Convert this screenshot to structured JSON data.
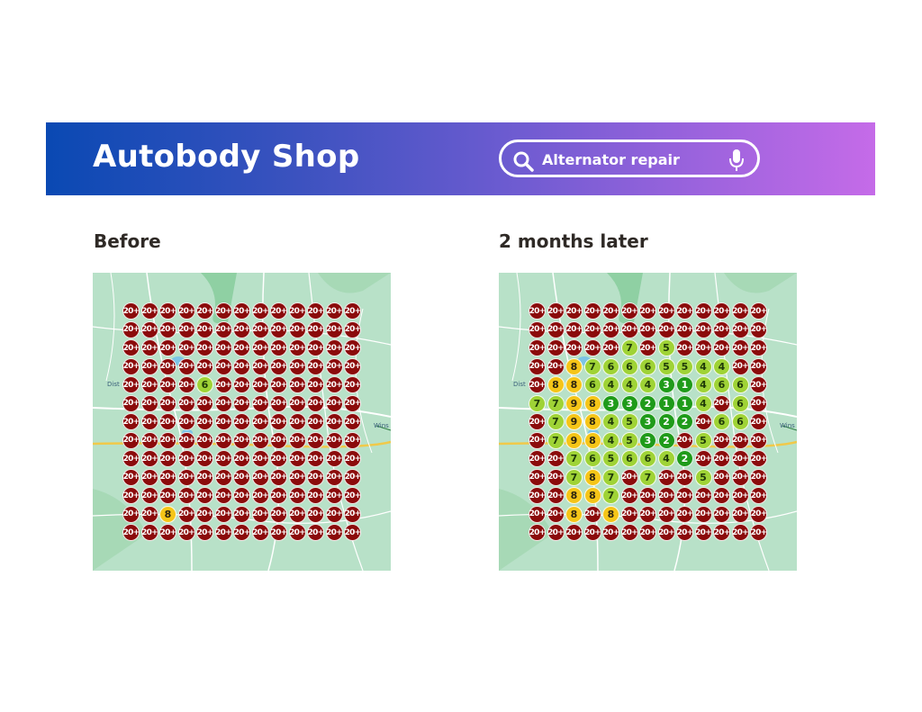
{
  "header": {
    "title": "Autobody Shop",
    "search_query": "Alternator repair",
    "background_gradient": [
      "#0a49b3",
      "#c56be8"
    ]
  },
  "panels": [
    {
      "title": "Before",
      "map_labels": [
        "Dist",
        "Wins"
      ],
      "grid": [
        [
          "20+",
          "20+",
          "20+",
          "20+",
          "20+",
          "20+",
          "20+",
          "20+",
          "20+",
          "20+",
          "20+",
          "20+",
          "20+"
        ],
        [
          "20+",
          "20+",
          "20+",
          "20+",
          "20+",
          "20+",
          "20+",
          "20+",
          "20+",
          "20+",
          "20+",
          "20+",
          "20+"
        ],
        [
          "20+",
          "20+",
          "20+",
          "20+",
          "20+",
          "20+",
          "20+",
          "20+",
          "20+",
          "20+",
          "20+",
          "20+",
          "20+"
        ],
        [
          "20+",
          "20+",
          "20+",
          "20+",
          "20+",
          "20+",
          "20+",
          "20+",
          "20+",
          "20+",
          "20+",
          "20+",
          "20+"
        ],
        [
          "20+",
          "20+",
          "20+",
          "20+",
          "6",
          "20+",
          "20+",
          "20+",
          "20+",
          "20+",
          "20+",
          "20+",
          "20+"
        ],
        [
          "20+",
          "20+",
          "20+",
          "20+",
          "20+",
          "20+",
          "20+",
          "20+",
          "20+",
          "20+",
          "20+",
          "20+",
          "20+"
        ],
        [
          "20+",
          "20+",
          "20+",
          "20+",
          "20+",
          "20+",
          "20+",
          "20+",
          "20+",
          "20+",
          "20+",
          "20+",
          "20+"
        ],
        [
          "20+",
          "20+",
          "20+",
          "20+",
          "20+",
          "20+",
          "20+",
          "20+",
          "20+",
          "20+",
          "20+",
          "20+",
          "20+"
        ],
        [
          "20+",
          "20+",
          "20+",
          "20+",
          "20+",
          "20+",
          "20+",
          "20+",
          "20+",
          "20+",
          "20+",
          "20+",
          "20+"
        ],
        [
          "20+",
          "20+",
          "20+",
          "20+",
          "20+",
          "20+",
          "20+",
          "20+",
          "20+",
          "20+",
          "20+",
          "20+",
          "20+"
        ],
        [
          "20+",
          "20+",
          "20+",
          "20+",
          "20+",
          "20+",
          "20+",
          "20+",
          "20+",
          "20+",
          "20+",
          "20+",
          "20+"
        ],
        [
          "20+",
          "20+",
          "8",
          "20+",
          "20+",
          "20+",
          "20+",
          "20+",
          "20+",
          "20+",
          "20+",
          "20+",
          "20+"
        ],
        [
          "20+",
          "20+",
          "20+",
          "20+",
          "20+",
          "20+",
          "20+",
          "20+",
          "20+",
          "20+",
          "20+",
          "20+",
          "20+"
        ]
      ]
    },
    {
      "title": "2 months later",
      "map_labels": [
        "Dist",
        "Wins"
      ],
      "grid": [
        [
          "20+",
          "20+",
          "20+",
          "20+",
          "20+",
          "20+",
          "20+",
          "20+",
          "20+",
          "20+",
          "20+",
          "20+",
          "20+"
        ],
        [
          "20+",
          "20+",
          "20+",
          "20+",
          "20+",
          "20+",
          "20+",
          "20+",
          "20+",
          "20+",
          "20+",
          "20+",
          "20+"
        ],
        [
          "20+",
          "20+",
          "20+",
          "20+",
          "20+",
          "7",
          "20+",
          "5",
          "20+",
          "20+",
          "20+",
          "20+",
          "20+"
        ],
        [
          "20+",
          "20+",
          "8",
          "7",
          "6",
          "6",
          "6",
          "5",
          "5",
          "4",
          "4",
          "20+",
          "20+"
        ],
        [
          "20+",
          "8",
          "8",
          "6",
          "4",
          "4",
          "4",
          "3",
          "1",
          "4",
          "6",
          "6",
          "20+"
        ],
        [
          "7",
          "7",
          "9",
          "8",
          "3",
          "3",
          "2",
          "1",
          "1",
          "4",
          "20+",
          "6",
          "20+"
        ],
        [
          "20+",
          "7",
          "9",
          "8",
          "4",
          "5",
          "3",
          "2",
          "2",
          "20+",
          "6",
          "6",
          "20+"
        ],
        [
          "20+",
          "7",
          "9",
          "8",
          "4",
          "5",
          "3",
          "2",
          "20+",
          "5",
          "20+",
          "20+",
          "20+"
        ],
        [
          "20+",
          "20+",
          "7",
          "6",
          "5",
          "6",
          "6",
          "4",
          "2",
          "20+",
          "20+",
          "20+",
          "20+"
        ],
        [
          "20+",
          "20+",
          "7",
          "8",
          "7",
          "20+",
          "7",
          "20+",
          "20+",
          "5",
          "20+",
          "20+",
          "20+"
        ],
        [
          "20+",
          "20+",
          "8",
          "8",
          "7",
          "20+",
          "20+",
          "20+",
          "20+",
          "20+",
          "20+",
          "20+",
          "20+"
        ],
        [
          "20+",
          "20+",
          "8",
          "20+",
          "8",
          "20+",
          "20+",
          "20+",
          "20+",
          "20+",
          "20+",
          "20+",
          "20+"
        ],
        [
          "20+",
          "20+",
          "20+",
          "20+",
          "20+",
          "20+",
          "20+",
          "20+",
          "20+",
          "20+",
          "20+",
          "20+",
          "20+"
        ]
      ]
    }
  ],
  "rank_colors": {
    "top_3": "#1f9b1a",
    "rank_4_to_7": "#9fd336",
    "rank_8_to_10": "#f5c518",
    "rank_20_plus": "#8b0b0b"
  },
  "icons": {
    "search": "search-icon",
    "mic": "microphone-icon"
  }
}
